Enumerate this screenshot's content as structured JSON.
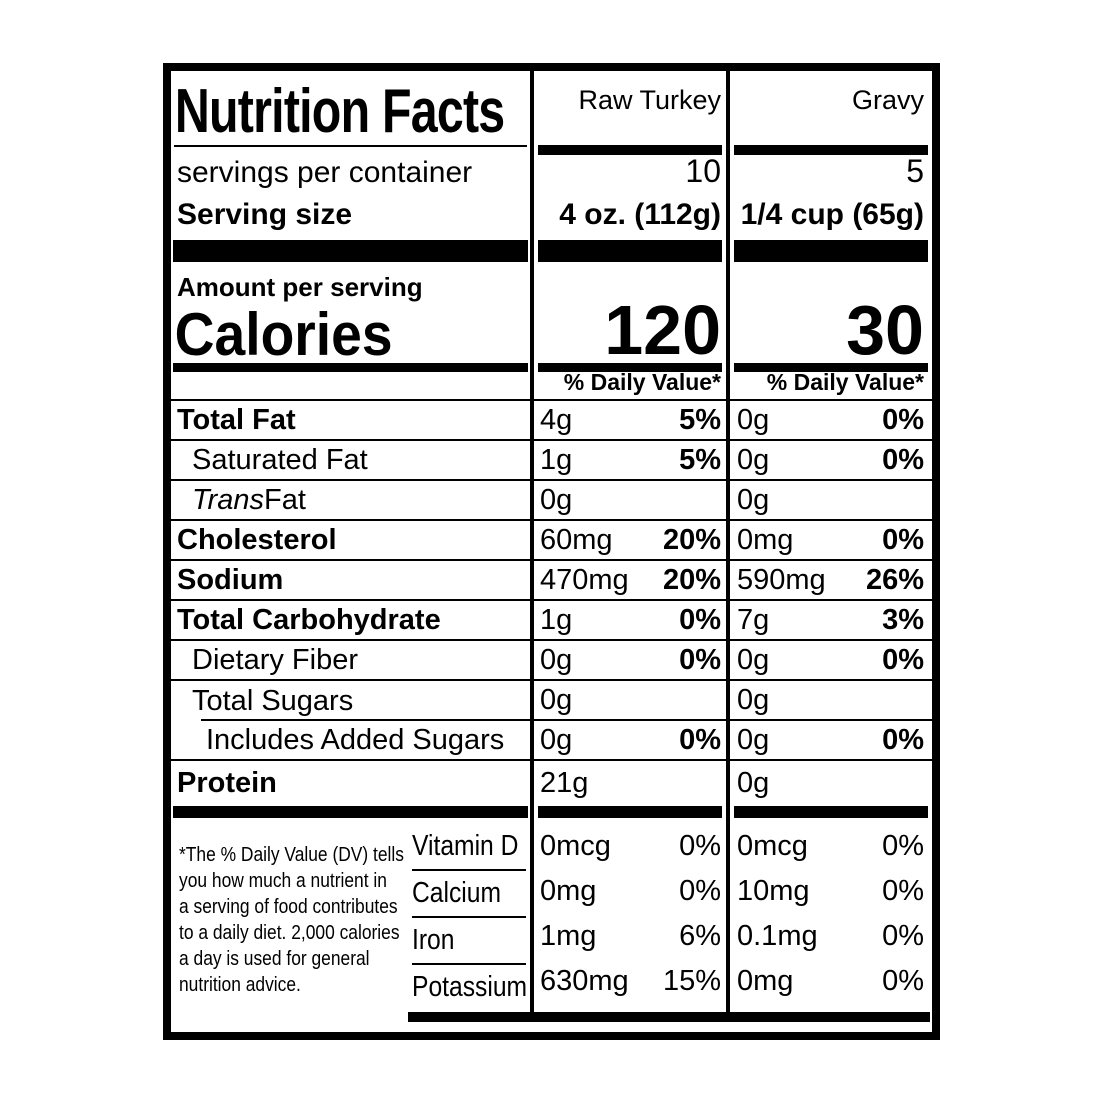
{
  "title": "Nutrition Facts",
  "product_columns": {
    "col1": "Raw Turkey",
    "col2": "Gravy"
  },
  "servings": {
    "label": "servings per container",
    "values": [
      "10",
      "5"
    ]
  },
  "serving_size": {
    "label": "Serving size",
    "values": [
      "4 oz. (112g)",
      "1/4 cup (65g)"
    ]
  },
  "calories": {
    "eyebrow": "Amount per serving",
    "label": "Calories",
    "values": [
      "120",
      "30"
    ]
  },
  "daily_value_header": "% Daily Value*",
  "nutrients": [
    {
      "name": "Total Fat",
      "amounts": [
        "4g",
        "0g"
      ],
      "dvs": [
        "5%",
        "0%"
      ]
    },
    {
      "name": "Saturated Fat",
      "amounts": [
        "1g",
        "0g"
      ],
      "dvs": [
        "5%",
        "0%"
      ]
    },
    {
      "name_italic": "Trans",
      "name_rest": " Fat",
      "amounts": [
        "0g",
        "0g"
      ],
      "dvs": [
        "",
        ""
      ]
    },
    {
      "name": "Cholesterol",
      "amounts": [
        "60mg",
        "0mg"
      ],
      "dvs": [
        "20%",
        "0%"
      ]
    },
    {
      "name": "Sodium",
      "amounts": [
        "470mg",
        "590mg"
      ],
      "dvs": [
        "20%",
        "26%"
      ]
    },
    {
      "name": "Total Carbohydrate",
      "amounts": [
        "1g",
        "7g"
      ],
      "dvs": [
        "0%",
        "3%"
      ]
    },
    {
      "name": "Dietary Fiber",
      "amounts": [
        "0g",
        "0g"
      ],
      "dvs": [
        "0%",
        "0%"
      ]
    },
    {
      "name": "Total Sugars",
      "amounts": [
        "0g",
        "0g"
      ],
      "dvs": [
        "",
        ""
      ]
    },
    {
      "name": "Includes Added Sugars",
      "amounts": [
        "0g",
        "0g"
      ],
      "dvs": [
        "0%",
        "0%"
      ]
    },
    {
      "name": "Protein",
      "amounts": [
        "21g",
        "0g"
      ],
      "dvs": [
        "",
        ""
      ]
    }
  ],
  "vitamins": [
    {
      "name": "Vitamin D",
      "amounts": [
        "0mcg",
        "0mcg"
      ],
      "dvs": [
        "0%",
        "0%"
      ]
    },
    {
      "name": "Calcium",
      "amounts": [
        "0mg",
        "10mg"
      ],
      "dvs": [
        "0%",
        "0%"
      ]
    },
    {
      "name": "Iron",
      "amounts": [
        "1mg",
        "0.1mg"
      ],
      "dvs": [
        "6%",
        "0%"
      ]
    },
    {
      "name": "Potassium",
      "amounts": [
        "630mg",
        "0mg"
      ],
      "dvs": [
        "15%",
        "0%"
      ]
    }
  ],
  "footnote": "*The % Daily Value (DV) tells\nyou how much a nutrient in\na serving of food contributes\nto a daily diet. 2,000 calories\na day is used for general\nnutrition advice.",
  "colors": {
    "ink": "#000000",
    "paper": "#ffffff"
  }
}
